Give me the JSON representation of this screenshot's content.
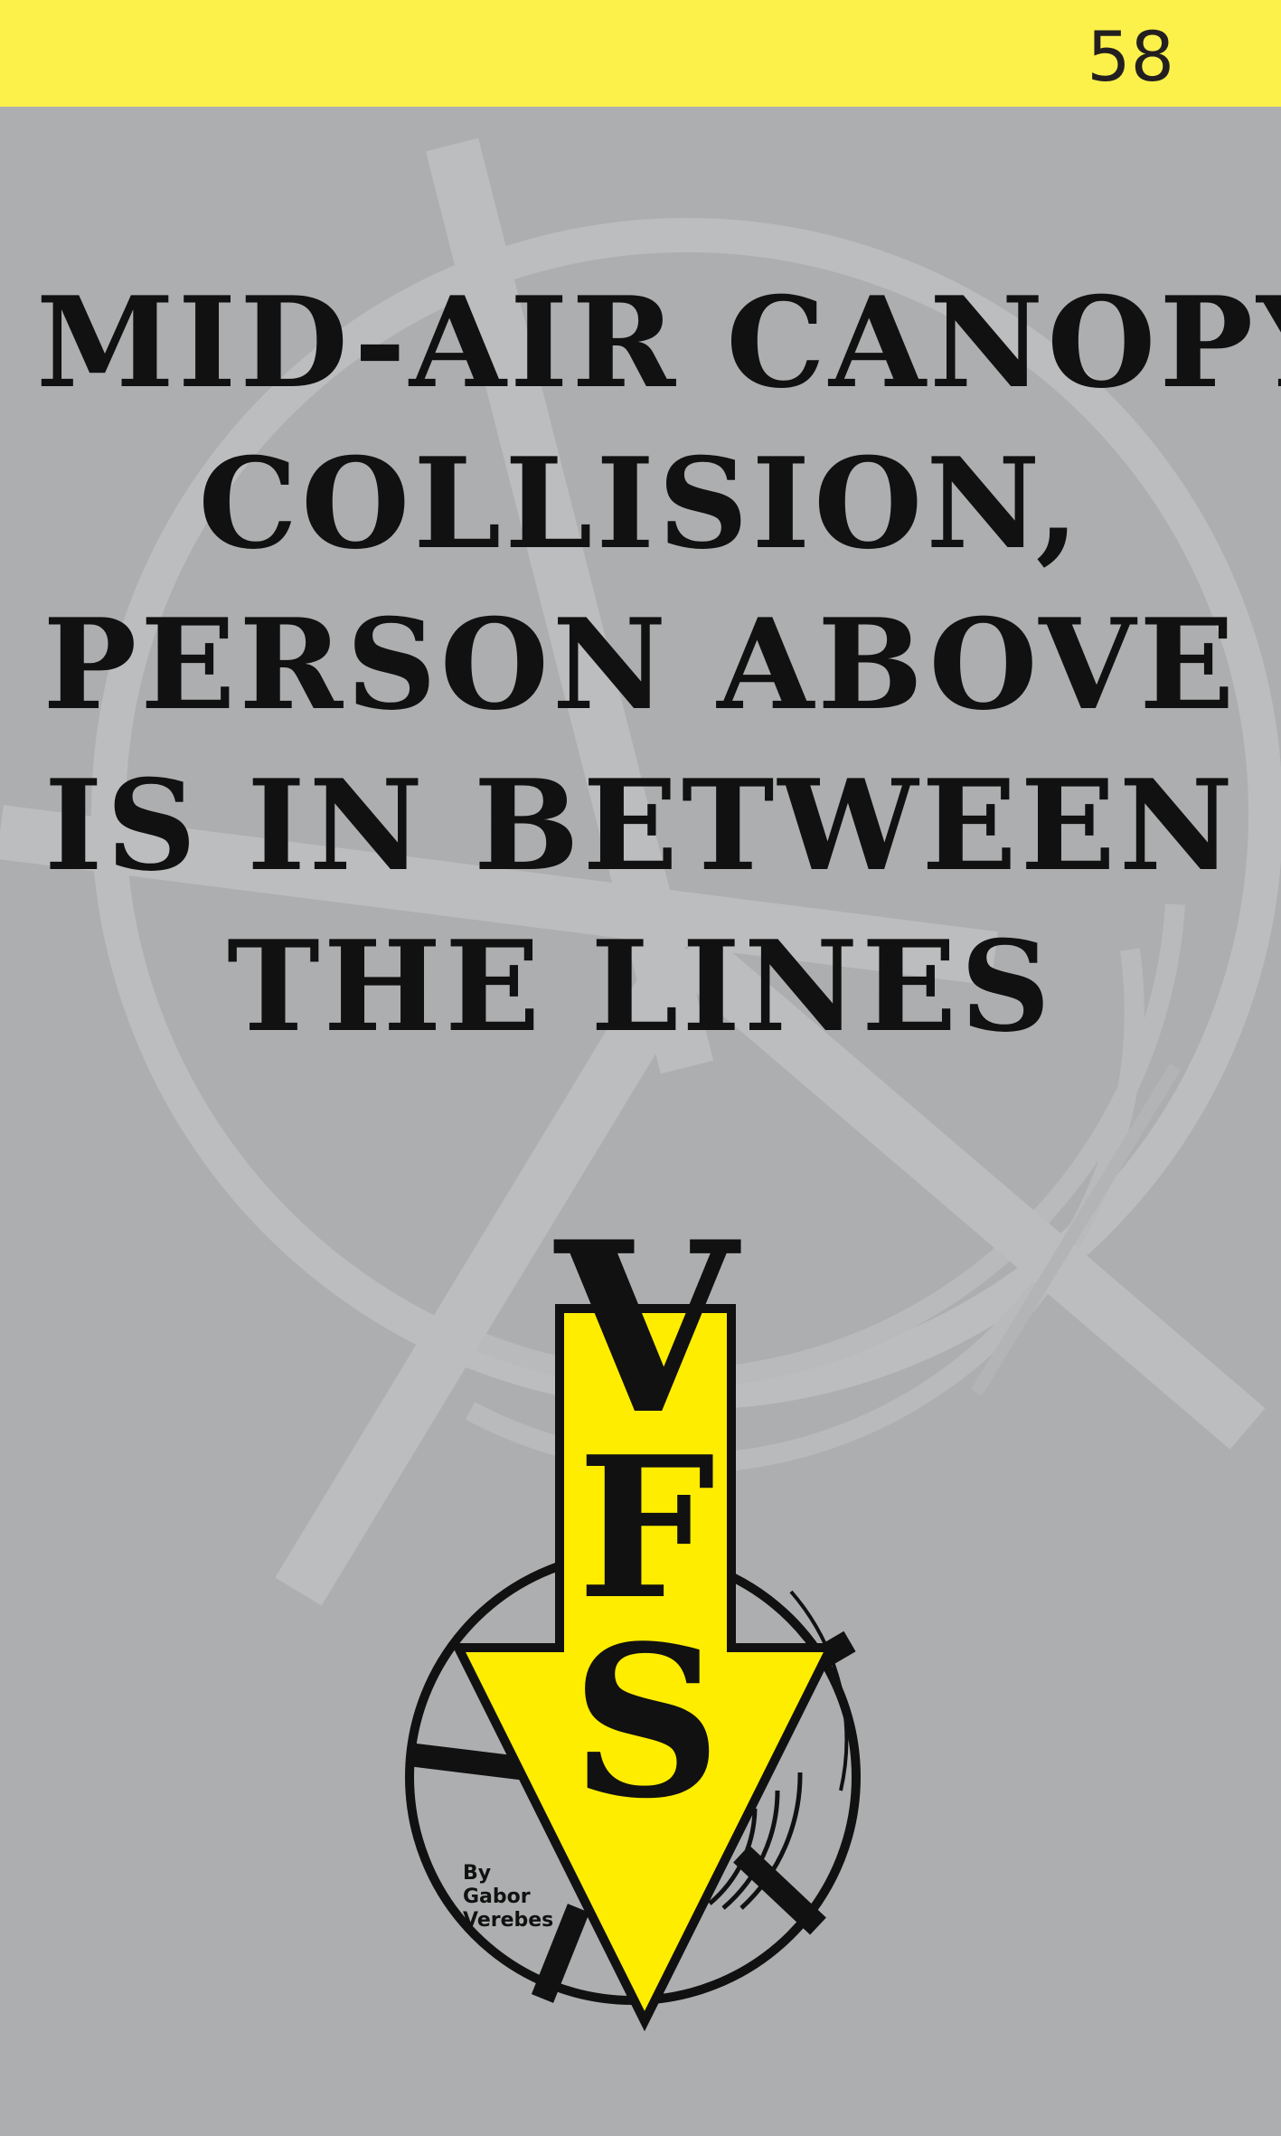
{
  "page": {
    "number": "58"
  },
  "headline": {
    "lines": [
      "MID-AIR CANOPY",
      "COLLISION,",
      "PERSON ABOVE",
      "IS IN BETWEEN",
      "THE LINES"
    ]
  },
  "logo": {
    "letters": [
      "V",
      "F",
      "S"
    ],
    "byline": [
      "By",
      "Gabor",
      "Verebes"
    ]
  },
  "colors": {
    "background": "#adaeaf",
    "top_bar": "#fcf14a",
    "accent_yellow": "#ffed00",
    "ink": "#111111",
    "watermark": "#bcbdbe"
  }
}
